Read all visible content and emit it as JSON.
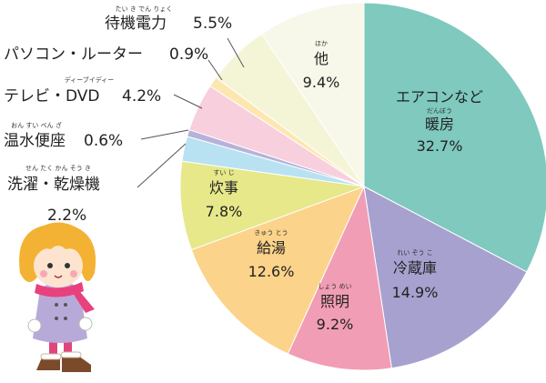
{
  "chart_data": {
    "type": "pie",
    "title": "",
    "start_angle_deg": 0,
    "direction": "clockwise",
    "slices": [
      {
        "label": "エアコンなど暖房",
        "value": 32.7,
        "value_label": "32.7%",
        "color": "#7fc9bf"
      },
      {
        "label": "冷蔵庫",
        "value": 14.9,
        "value_label": "14.9%",
        "color": "#a7a1cf"
      },
      {
        "label": "照明",
        "value": 9.2,
        "value_label": "9.2%",
        "color": "#f19db5"
      },
      {
        "label": "給湯",
        "value": 12.6,
        "value_label": "12.6%",
        "color": "#fbd38a"
      },
      {
        "label": "炊事",
        "value": 7.8,
        "value_label": "7.8%",
        "color": "#e6e88a"
      },
      {
        "label": "洗濯・乾燥機",
        "value": 2.2,
        "value_label": "2.2%",
        "color": "#b8e2f2"
      },
      {
        "label": "温水便座",
        "value": 0.6,
        "value_label": "0.6%",
        "color": "#b6b2da"
      },
      {
        "label": "テレビ・DVD",
        "value": 4.2,
        "value_label": "4.2%",
        "color": "#f8cfdc"
      },
      {
        "label": "パソコン・ルーター",
        "value": 0.9,
        "value_label": "0.9%",
        "color": "#fde7b0"
      },
      {
        "label": "待機電力",
        "value": 5.5,
        "value_label": "5.5%",
        "color": "#f4f5d6"
      },
      {
        "label": "他",
        "value": 9.4,
        "value_label": "9.4%",
        "color": "#f7f7ea"
      }
    ]
  },
  "labels": {
    "aircon": {
      "line1": "エアコンなど",
      "line2": "暖房",
      "ruby": "だんぼう",
      "pct": "32.7%"
    },
    "fridge": {
      "text": "冷蔵庫",
      "ruby": "れい ぞう こ",
      "pct": "14.9%"
    },
    "light": {
      "text": "照明",
      "ruby": "しょう めい",
      "pct": "9.2%"
    },
    "water": {
      "text": "給湯",
      "ruby": "きゅう とう",
      "pct": "12.6%"
    },
    "cooking": {
      "text": "炊事",
      "ruby": "すい じ",
      "pct": "7.8%"
    },
    "other": {
      "text": "他",
      "ruby": "ほか",
      "pct": "9.4%"
    },
    "standby": {
      "text": "待機電力",
      "ruby": "たい き でん りょく",
      "pct": "5.5%"
    },
    "pc": {
      "text": "パソコン・ルーター",
      "pct": "0.9%"
    },
    "tv": {
      "text": "テレビ・DVD",
      "ruby": "ディーブイディー",
      "pct": "4.2%"
    },
    "toilet": {
      "text": "温水便座",
      "ruby": "おん すい べん ざ",
      "pct": "0.6%"
    },
    "laundry": {
      "text": "洗濯・乾燥機",
      "ruby": "せん たく かん そう き",
      "pct": "2.2%"
    }
  },
  "colors": {
    "line": "#555555",
    "girl_hair": "#f3b233",
    "girl_coat": "#b7aad8",
    "girl_scarf": "#e8417d",
    "girl_boots": "#7a4a2a"
  }
}
